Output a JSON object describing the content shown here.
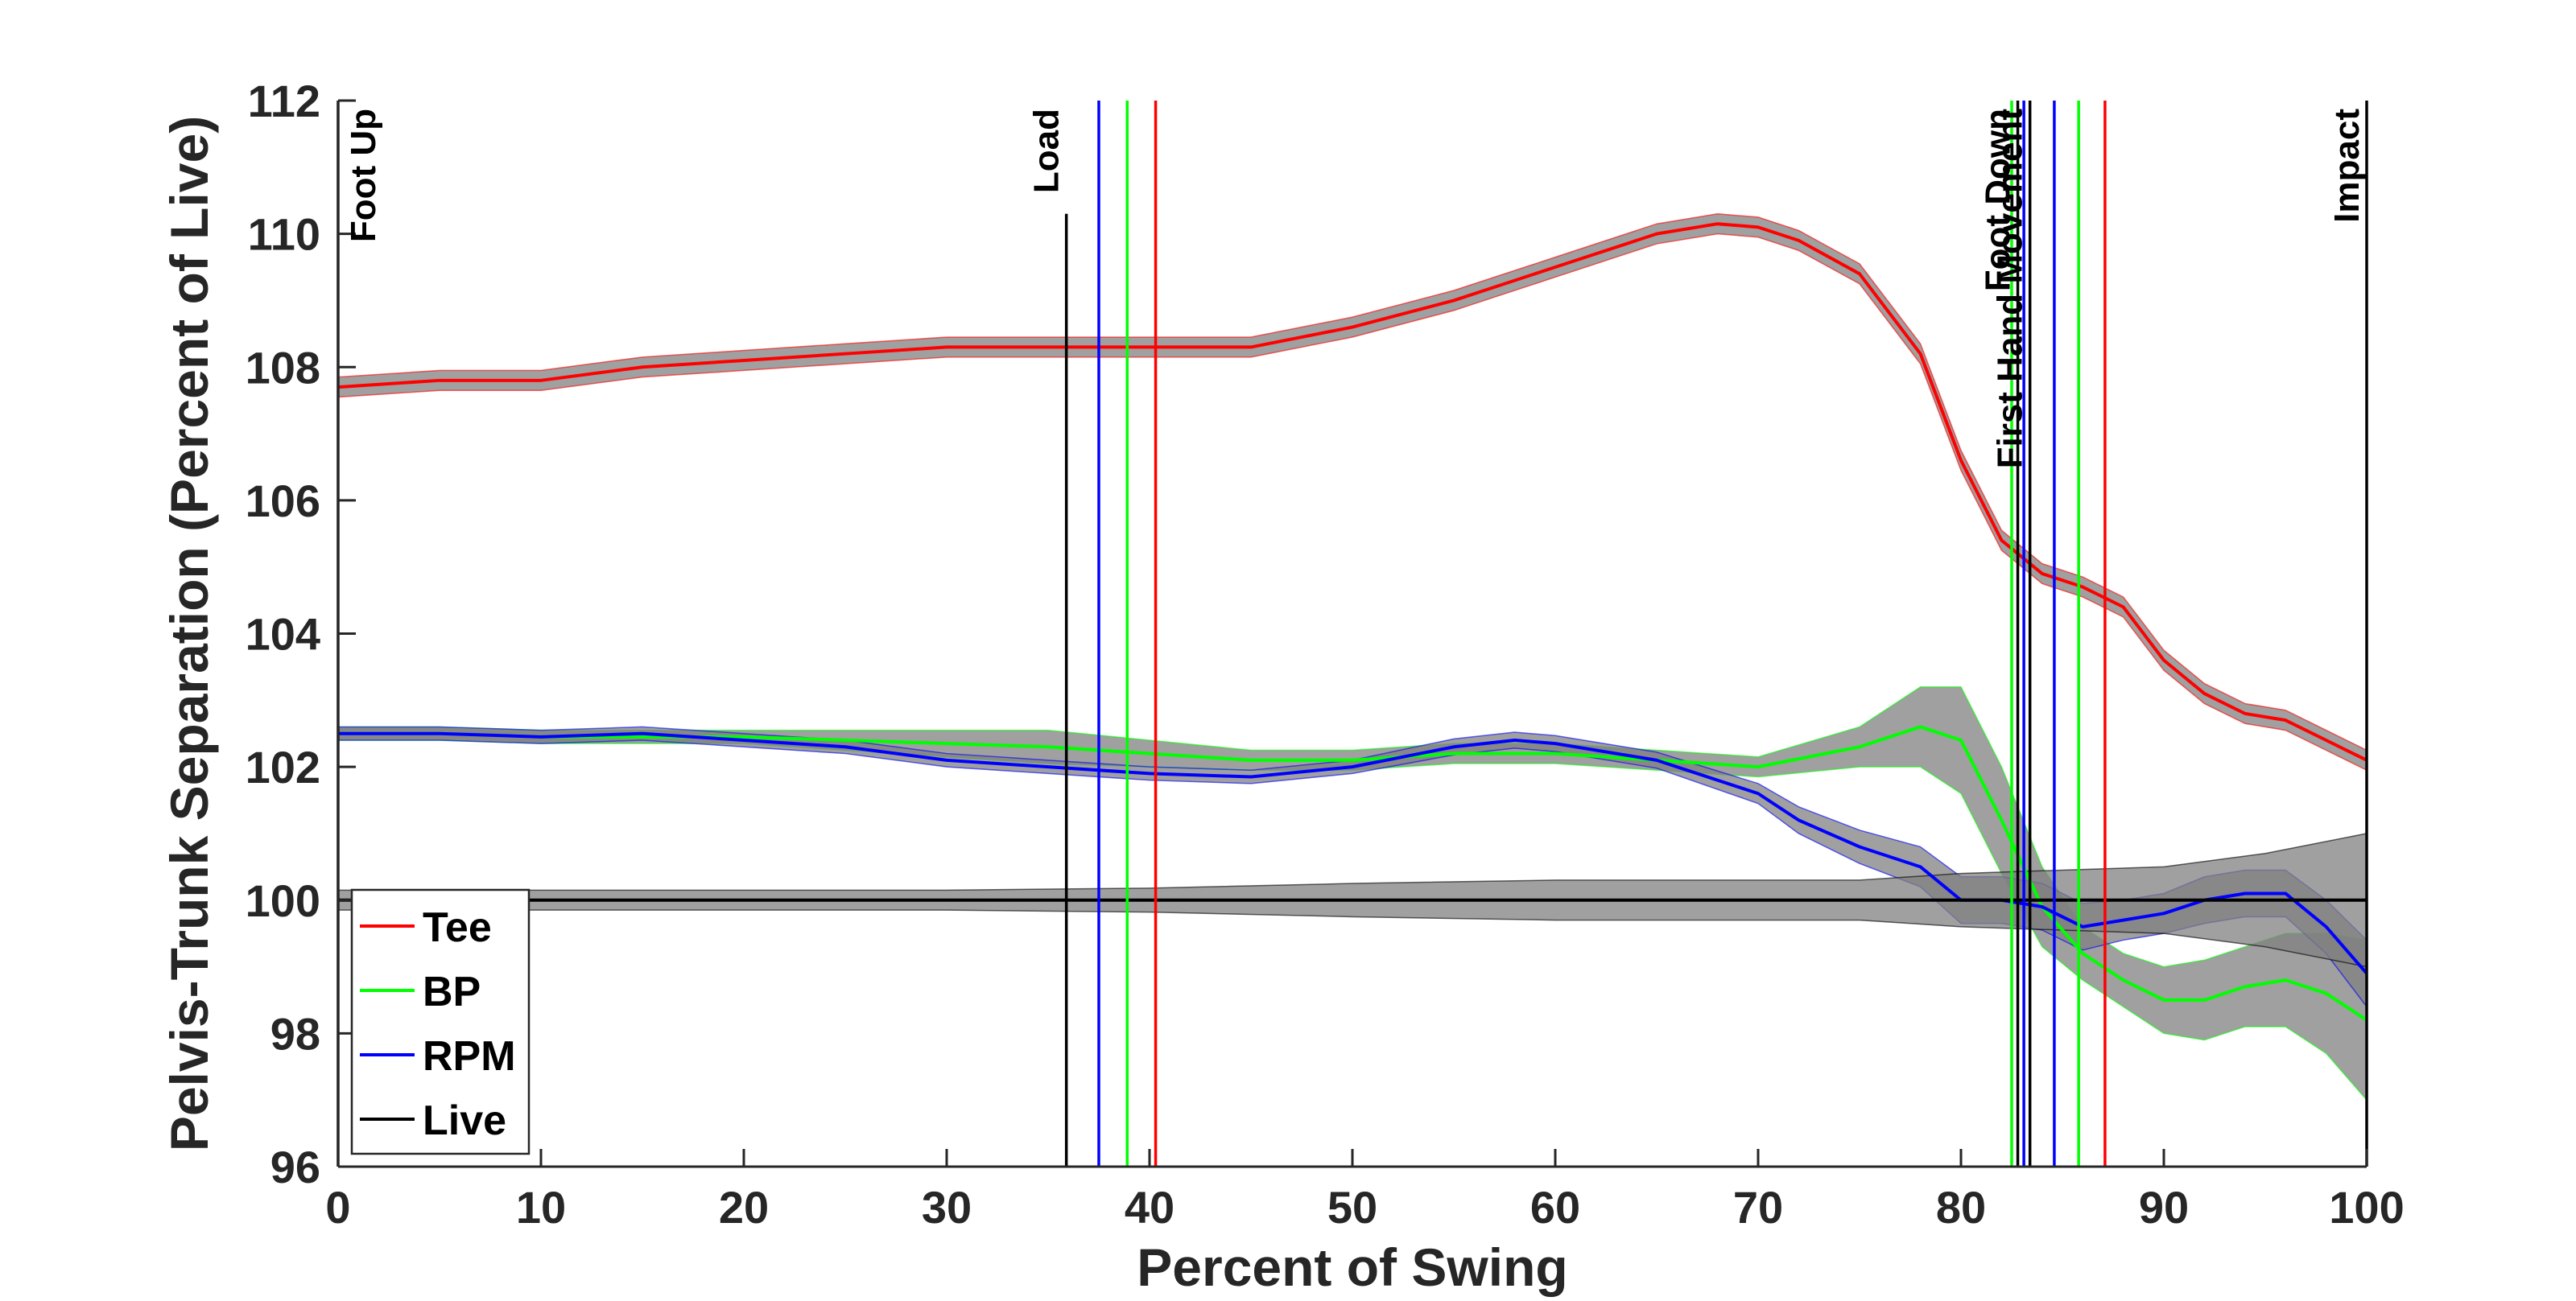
{
  "chart_data": {
    "type": "line",
    "title": "",
    "xlabel": "Percent of Swing",
    "ylabel": "Pelvis-Trunk Separation (Percent of Live)",
    "xlim": [
      0,
      100
    ],
    "ylim": [
      96,
      112
    ],
    "xticks": [
      0,
      10,
      20,
      30,
      40,
      50,
      60,
      70,
      80,
      90,
      100
    ],
    "yticks": [
      96,
      98,
      100,
      102,
      104,
      106,
      108,
      110,
      112
    ],
    "grid": false,
    "legend_position": "bottom-left",
    "series": [
      {
        "name": "Tee",
        "color": "#ff0000",
        "x": [
          0,
          5,
          10,
          15,
          20,
          25,
          30,
          35,
          40,
          45,
          50,
          55,
          60,
          65,
          68,
          70,
          72,
          75,
          78,
          80,
          82,
          84,
          86,
          88,
          90,
          92,
          94,
          96,
          98,
          100
        ],
        "y": [
          107.7,
          107.8,
          107.8,
          108.0,
          108.1,
          108.2,
          108.3,
          108.3,
          108.3,
          108.3,
          108.6,
          109.0,
          109.5,
          110.0,
          110.15,
          110.1,
          109.9,
          109.4,
          108.2,
          106.6,
          105.4,
          104.9,
          104.7,
          104.4,
          103.6,
          103.1,
          102.8,
          102.7,
          102.4,
          102.1
        ],
        "band": [
          0.15,
          0.15,
          0.15,
          0.15,
          0.15,
          0.15,
          0.15,
          0.15,
          0.15,
          0.15,
          0.15,
          0.15,
          0.15,
          0.15,
          0.15,
          0.15,
          0.15,
          0.15,
          0.15,
          0.15,
          0.15,
          0.15,
          0.15,
          0.15,
          0.15,
          0.15,
          0.15,
          0.15,
          0.15,
          0.15
        ]
      },
      {
        "name": "BP",
        "color": "#00ff00",
        "x": [
          0,
          5,
          10,
          15,
          20,
          25,
          30,
          35,
          40,
          45,
          50,
          55,
          60,
          65,
          70,
          75,
          78,
          80,
          82,
          84,
          86,
          88,
          90,
          92,
          94,
          96,
          98,
          100
        ],
        "y": [
          102.5,
          102.5,
          102.45,
          102.45,
          102.45,
          102.4,
          102.35,
          102.3,
          102.2,
          102.1,
          102.1,
          102.2,
          102.2,
          102.1,
          102.0,
          102.3,
          102.6,
          102.4,
          101.2,
          99.9,
          99.2,
          98.8,
          98.5,
          98.5,
          98.7,
          98.8,
          98.6,
          98.2
        ],
        "band": [
          0.1,
          0.1,
          0.1,
          0.1,
          0.1,
          0.15,
          0.2,
          0.25,
          0.2,
          0.15,
          0.15,
          0.15,
          0.15,
          0.15,
          0.15,
          0.3,
          0.6,
          0.8,
          0.8,
          0.6,
          0.4,
          0.4,
          0.5,
          0.6,
          0.6,
          0.7,
          0.9,
          1.2
        ]
      },
      {
        "name": "RPM",
        "color": "#0000ff",
        "x": [
          0,
          5,
          10,
          15,
          20,
          25,
          30,
          35,
          40,
          45,
          50,
          55,
          58,
          60,
          65,
          70,
          72,
          75,
          78,
          80,
          82,
          84,
          86,
          88,
          90,
          92,
          94,
          96,
          98,
          100
        ],
        "y": [
          102.5,
          102.5,
          102.45,
          102.5,
          102.4,
          102.3,
          102.1,
          102.0,
          101.9,
          101.85,
          102.0,
          102.3,
          102.4,
          102.35,
          102.1,
          101.6,
          101.2,
          100.8,
          100.5,
          100.0,
          100.0,
          99.9,
          99.6,
          99.7,
          99.8,
          100.0,
          100.1,
          100.1,
          99.6,
          98.9
        ],
        "band": [
          0.1,
          0.1,
          0.1,
          0.1,
          0.1,
          0.1,
          0.1,
          0.1,
          0.1,
          0.1,
          0.1,
          0.12,
          0.12,
          0.12,
          0.12,
          0.15,
          0.2,
          0.25,
          0.3,
          0.35,
          0.35,
          0.35,
          0.35,
          0.3,
          0.3,
          0.35,
          0.35,
          0.35,
          0.4,
          0.5
        ]
      },
      {
        "name": "Live",
        "color": "#000000",
        "x": [
          0,
          10,
          20,
          30,
          40,
          50,
          60,
          70,
          75,
          80,
          85,
          90,
          95,
          100
        ],
        "y": [
          100,
          100,
          100,
          100,
          100,
          100,
          100,
          100,
          100,
          100,
          100,
          100,
          100,
          100
        ],
        "band": [
          0.15,
          0.15,
          0.15,
          0.15,
          0.18,
          0.25,
          0.3,
          0.3,
          0.3,
          0.4,
          0.45,
          0.5,
          0.7,
          1.0
        ]
      }
    ],
    "event_lines": [
      {
        "x": 0,
        "color": "#000000",
        "label": "Foot Up"
      },
      {
        "x": 35.9,
        "color": "#000000",
        "label": "Load"
      },
      {
        "x": 37.5,
        "color": "#0000ff",
        "label": ""
      },
      {
        "x": 38.9,
        "color": "#00ff00",
        "label": ""
      },
      {
        "x": 40.3,
        "color": "#ff0000",
        "label": ""
      },
      {
        "x": 82.5,
        "color": "#00ff00",
        "label": ""
      },
      {
        "x": 82.8,
        "color": "#000000",
        "label": "Foot Down"
      },
      {
        "x": 83.1,
        "color": "#0000ff",
        "label": ""
      },
      {
        "x": 83.4,
        "color": "#000000",
        "label": "First Hand Movement"
      },
      {
        "x": 84.6,
        "color": "#0000ff",
        "label": ""
      },
      {
        "x": 85.8,
        "color": "#00ff00",
        "label": ""
      },
      {
        "x": 87.1,
        "color": "#ff0000",
        "label": ""
      },
      {
        "x": 100,
        "color": "#000000",
        "label": "Impact"
      }
    ],
    "band_color": "#808080"
  }
}
